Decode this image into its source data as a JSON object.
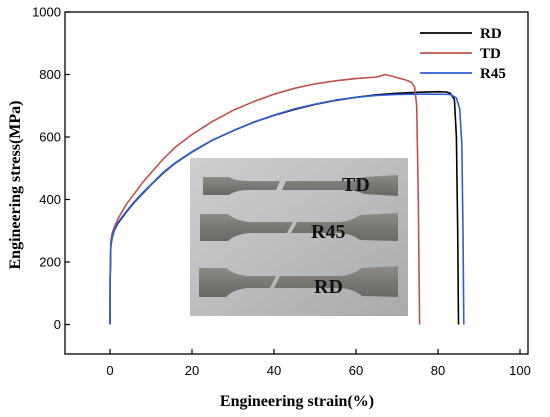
{
  "chart_data": {
    "type": "line",
    "xlabel": "Engineering strain(%)",
    "ylabel": "Engineering stress(MPa)",
    "xlim": [
      0,
      100
    ],
    "ylim": [
      0,
      1000
    ],
    "xticks": [
      0,
      20,
      40,
      60,
      80,
      100
    ],
    "yticks": [
      0,
      200,
      400,
      600,
      800,
      1000
    ],
    "legend_position": "top-right",
    "series": [
      {
        "name": "RD",
        "color": "#000000",
        "x": [
          0,
          0.05,
          0.2,
          0.5,
          1,
          2,
          4,
          6,
          8,
          10,
          13,
          16,
          20,
          25,
          30,
          35,
          40,
          45,
          50,
          55,
          60,
          65,
          70,
          75,
          80,
          82,
          83,
          84,
          84.5,
          84.8,
          85
        ],
        "y": [
          0,
          150,
          250,
          275,
          300,
          325,
          360,
          392,
          420,
          447,
          485,
          517,
          552,
          590,
          620,
          647,
          669,
          688,
          704,
          717,
          727,
          735,
          740,
          743,
          745,
          744,
          740,
          720,
          600,
          300,
          0
        ]
      },
      {
        "name": "TD",
        "color": "#c0504d",
        "x": [
          0,
          0.05,
          0.2,
          0.5,
          1,
          2,
          4,
          6,
          8,
          10,
          13,
          16,
          20,
          25,
          30,
          35,
          40,
          45,
          50,
          55,
          60,
          65,
          66,
          67,
          68,
          70,
          72,
          73.5,
          74.3,
          74.8,
          75.2,
          75.5
        ],
        "y": [
          0,
          160,
          265,
          290,
          310,
          340,
          385,
          420,
          455,
          485,
          530,
          568,
          608,
          650,
          685,
          713,
          737,
          756,
          770,
          780,
          787,
          792,
          795,
          800,
          797,
          790,
          783,
          775,
          760,
          700,
          400,
          0
        ]
      },
      {
        "name": "R45",
        "color": "#2e5fd6",
        "x": [
          0,
          0.05,
          0.2,
          0.5,
          1,
          2,
          4,
          6,
          8,
          10,
          13,
          16,
          20,
          25,
          30,
          35,
          40,
          45,
          50,
          55,
          60,
          65,
          70,
          75,
          80,
          83,
          84.5,
          85.3,
          85.8,
          86.1,
          86.3
        ],
        "y": [
          0,
          150,
          252,
          277,
          302,
          328,
          362,
          394,
          422,
          448,
          487,
          518,
          553,
          590,
          620,
          647,
          670,
          690,
          705,
          718,
          727,
          733,
          736,
          737,
          737,
          736,
          725,
          690,
          580,
          300,
          0
        ]
      }
    ],
    "inset_photo_labels": [
      "TD",
      "R45",
      "RD"
    ]
  }
}
